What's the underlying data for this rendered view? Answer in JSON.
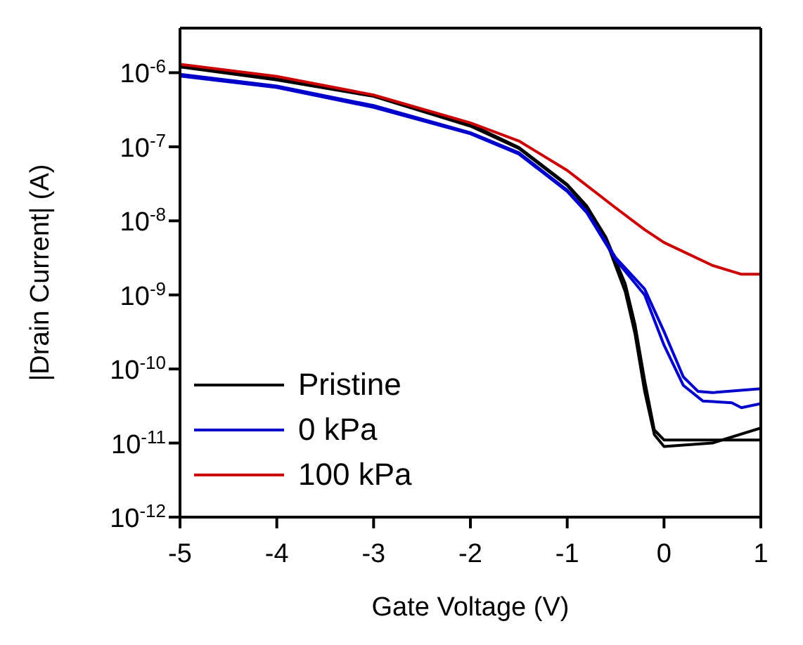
{
  "chart_data": {
    "type": "line",
    "xlabel": "Gate Voltage (V)",
    "ylabel": "|Drain Current| (A)",
    "log": "y",
    "xlim": [
      -5,
      1
    ],
    "xticks": [
      -5,
      -4,
      -3,
      -2,
      -1,
      0,
      1
    ],
    "ylim": [
      1e-12,
      4e-06
    ],
    "yticks": [
      {
        "value": 1e-12,
        "label": "10$^{-12}$"
      },
      {
        "value": 1e-11,
        "label": "10$^{-11}$"
      },
      {
        "value": 1e-10,
        "label": "10$^{-10}$"
      },
      {
        "value": 1e-09,
        "label": "10$^{-9}$"
      },
      {
        "value": 1e-08,
        "label": "10$^{-8}$"
      },
      {
        "value": 1e-07,
        "label": "10$^{-7}$"
      },
      {
        "value": 1e-06,
        "label": "10$^{-6}$"
      }
    ],
    "legend": "bottom left",
    "marker": "none",
    "line_style": "solid",
    "series": [
      {
        "name": "Pristine",
        "color": "#000000",
        "x": [
          -5,
          -4,
          -3,
          -2,
          -1.5,
          -1,
          -0.8,
          -0.6,
          -0.4,
          -0.3,
          -0.2,
          -0.1,
          0,
          0.5,
          1
        ],
        "values": [
          1.2e-06,
          8e-07,
          4.8e-07,
          1.9e-07,
          9.5e-08,
          3e-08,
          1.5e-08,
          5.5e-09,
          1.1e-09,
          3e-10,
          5e-11,
          1.3e-11,
          9e-12,
          1e-11,
          1.6e-11
        ]
      },
      {
        "color": "#000000",
        "x": [
          -5,
          -4,
          -3,
          -2,
          -1.5,
          -1,
          -0.8,
          -0.6,
          -0.4,
          -0.3,
          -0.2,
          -0.1,
          0,
          0.5,
          1
        ],
        "values": [
          1.25e-06,
          8.2e-07,
          4.9e-07,
          2e-07,
          9.8e-08,
          3.1e-08,
          1.6e-08,
          6e-09,
          1.4e-09,
          4e-10,
          7e-11,
          1.5e-11,
          1.1e-11,
          1.1e-11,
          1.1e-11
        ]
      },
      {
        "name": "0 kPa",
        "color": "#0000cc",
        "x": [
          -5,
          -4,
          -3,
          -2,
          -1.5,
          -1,
          -0.8,
          -0.5,
          -0.2,
          0,
          0.2,
          0.35,
          0.5,
          1
        ],
        "values": [
          9.5e-07,
          6.6e-07,
          3.6e-07,
          1.55e-07,
          8.3e-08,
          2.6e-08,
          1.35e-08,
          3.2e-09,
          1.2e-09,
          3.2e-10,
          7.8e-11,
          5e-11,
          4.8e-11,
          5.4e-11
        ]
      },
      {
        "color": "#0000cc",
        "x": [
          -5,
          -4,
          -3,
          -2,
          -1.5,
          -1,
          -0.8,
          -0.5,
          -0.2,
          0,
          0.2,
          0.4,
          0.7,
          0.8,
          1
        ],
        "values": [
          9e-07,
          6.3e-07,
          3.4e-07,
          1.5e-07,
          8e-08,
          2.5e-08,
          1.3e-08,
          3e-09,
          1e-09,
          2.1e-10,
          6e-11,
          3.7e-11,
          3.5e-11,
          3e-11,
          3.4e-11
        ]
      },
      {
        "name": "100 kPa",
        "color": "#cc0000",
        "x": [
          -5,
          -4,
          -3,
          -2,
          -1.5,
          -1,
          -0.5,
          -0.2,
          0,
          0.5,
          0.8,
          1
        ],
        "values": [
          1.3e-06,
          8.9e-07,
          5e-07,
          2.1e-07,
          1.2e-07,
          4.8e-08,
          1.5e-08,
          7.6e-09,
          5.1e-09,
          2.5e-09,
          1.9e-09,
          1.9e-09
        ]
      }
    ]
  }
}
